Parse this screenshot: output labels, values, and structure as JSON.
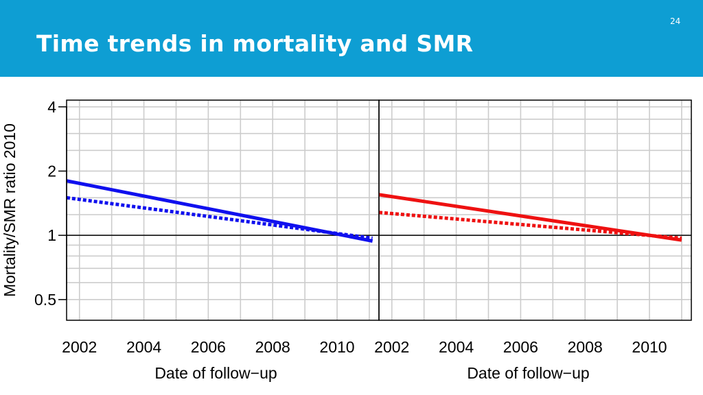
{
  "slide": {
    "title": "Time trends in mortality and SMR",
    "number": "24"
  },
  "chart_data": [
    {
      "type": "line",
      "panel": "left",
      "xlabel": "Date of follow−up",
      "ylabel": "Mortality/SMR ratio 2010",
      "scale_y": "log",
      "xlim": [
        2001.6,
        2011.3
      ],
      "ylim": [
        0.4,
        4.3
      ],
      "x_ticks": [
        2002,
        2004,
        2006,
        2008,
        2010
      ],
      "x_tick_labels": [
        "2002",
        "2004",
        "2006",
        "2008",
        "2010"
      ],
      "y_ticks": [
        0.5,
        1,
        2,
        4
      ],
      "y_tick_labels": [
        "0.5",
        "1",
        "2",
        "4"
      ],
      "reference_line_y": 1,
      "grid": true,
      "color": "#1010ee",
      "series": [
        {
          "style": "solid",
          "x": [
            2001.6,
            2011.1
          ],
          "y": [
            1.8,
            0.94
          ]
        },
        {
          "style": "dotted",
          "x": [
            2001.6,
            2011.1
          ],
          "y": [
            1.5,
            0.97
          ]
        }
      ]
    },
    {
      "type": "line",
      "panel": "right",
      "xlabel": "Date of follow−up",
      "scale_y": "log",
      "xlim": [
        2001.6,
        2011.3
      ],
      "ylim": [
        0.4,
        4.3
      ],
      "x_ticks": [
        2002,
        2004,
        2006,
        2008,
        2010
      ],
      "x_tick_labels": [
        "2002",
        "2004",
        "2006",
        "2008",
        "2010"
      ],
      "reference_line_y": 1,
      "grid": true,
      "color": "#ee1111",
      "series": [
        {
          "style": "solid",
          "x": [
            2001.6,
            2011.0
          ],
          "y": [
            1.55,
            0.95
          ]
        },
        {
          "style": "dotted",
          "x": [
            2001.6,
            2011.0
          ],
          "y": [
            1.28,
            0.97
          ]
        }
      ]
    }
  ]
}
